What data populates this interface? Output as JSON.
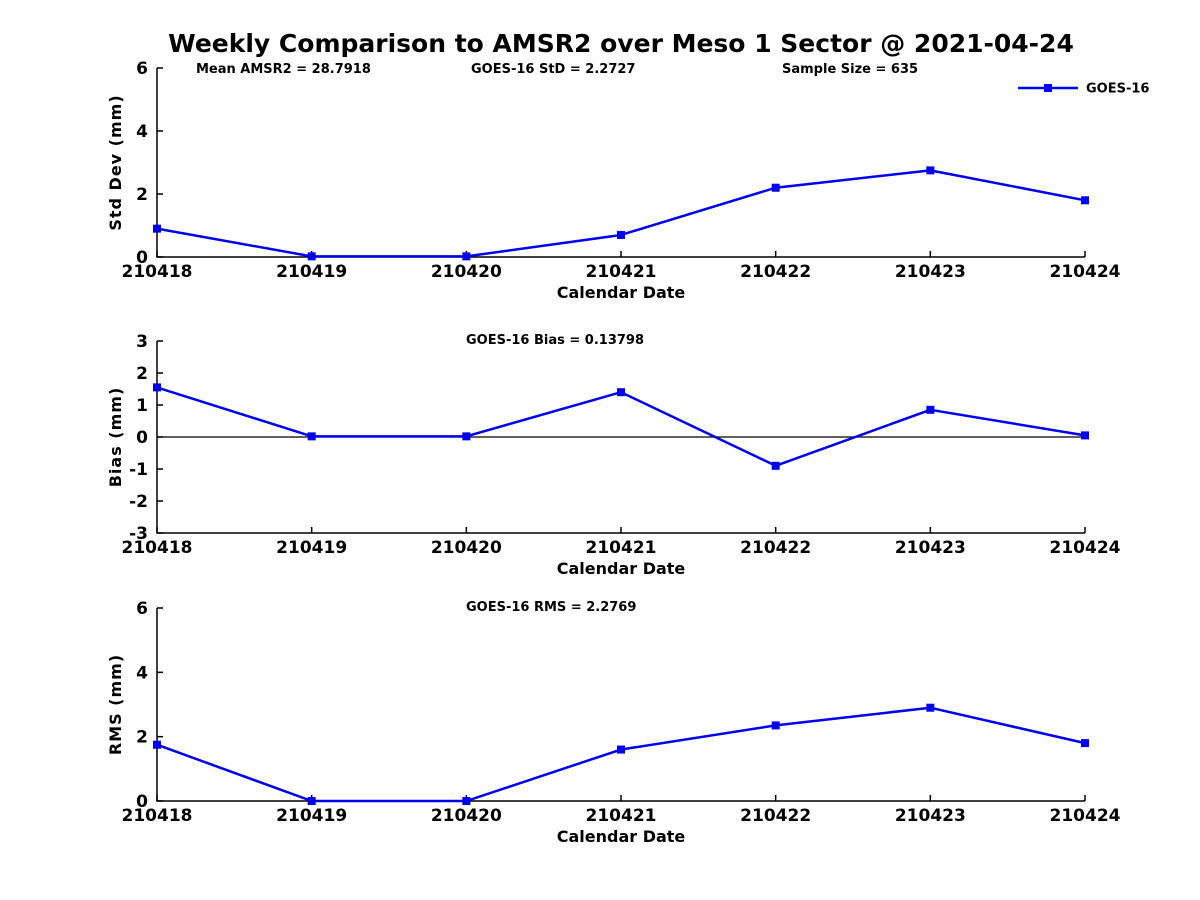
{
  "figure": {
    "title": "Weekly Comparison to AMSR2 over Meso 1 Sector @ 2021-04-24"
  },
  "legend": {
    "label": "GOES-16",
    "position": "top-right",
    "color": "#0000EE"
  },
  "chart_data": [
    {
      "type": "line",
      "subplot": "std-dev",
      "annotations": [
        {
          "text": "Mean AMSR2 = 28.7918"
        },
        {
          "text": "GOES-16 StD = 2.2727"
        },
        {
          "text": "Sample Size = 635"
        }
      ],
      "categories": [
        "210418",
        "210419",
        "210420",
        "210421",
        "210422",
        "210423",
        "210424"
      ],
      "series": [
        {
          "name": "GOES-16",
          "color": "#0000EE",
          "values": [
            0.9,
            0.02,
            0.02,
            0.7,
            2.2,
            2.75,
            1.8
          ]
        }
      ],
      "xlabel": "Calendar Date",
      "ylabel": "Std Dev (mm)",
      "ylim": [
        0,
        6
      ],
      "yticks": [
        0,
        2,
        4,
        6
      ],
      "grid": false,
      "zero_line": false,
      "has_legend": true
    },
    {
      "type": "line",
      "subplot": "bias",
      "title": "GOES-16 Bias  = 0.13798",
      "categories": [
        "210418",
        "210419",
        "210420",
        "210421",
        "210422",
        "210423",
        "210424"
      ],
      "series": [
        {
          "name": "GOES-16",
          "color": "#0000EE",
          "values": [
            1.55,
            0.02,
            0.02,
            1.4,
            -0.9,
            0.85,
            0.05
          ]
        }
      ],
      "xlabel": "Calendar Date",
      "ylabel": "Bias (mm)",
      "ylim": [
        -3,
        3
      ],
      "yticks": [
        -3,
        -2,
        -1,
        0,
        1,
        2,
        3
      ],
      "grid": false,
      "zero_line": true,
      "has_legend": false
    },
    {
      "type": "line",
      "subplot": "rms",
      "title": "GOES-16 RMS = 2.2769",
      "categories": [
        "210418",
        "210419",
        "210420",
        "210421",
        "210422",
        "210423",
        "210424"
      ],
      "series": [
        {
          "name": "GOES-16",
          "color": "#0000EE",
          "values": [
            1.75,
            0.0,
            0.0,
            1.6,
            2.35,
            2.9,
            1.8
          ]
        }
      ],
      "xlabel": "Calendar Date",
      "ylabel": "RMS (mm)",
      "ylim": [
        0,
        6
      ],
      "yticks": [
        0,
        2,
        4,
        6
      ],
      "grid": false,
      "zero_line": false,
      "has_legend": false
    }
  ]
}
